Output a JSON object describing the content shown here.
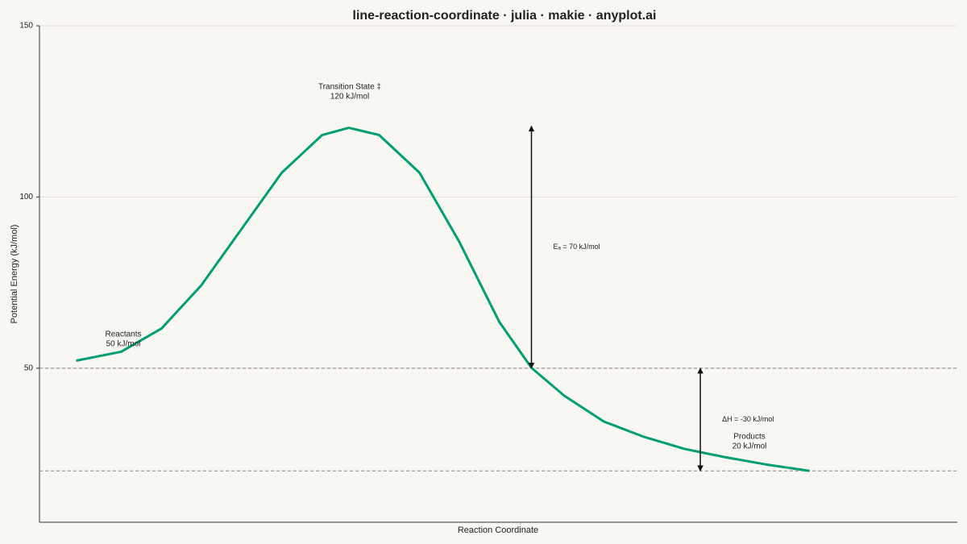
{
  "chart_data": {
    "type": "line",
    "title": "line-reaction-coordinate · julia · makie · anyplot.ai",
    "x_label": "Reaction Coordinate",
    "y_label": "Potential Energy (kJ/mol)",
    "x": [
      4.0,
      8.9,
      13.3,
      17.6,
      22.0,
      26.4,
      30.8,
      33.7,
      37.0,
      41.4,
      45.7,
      50.1,
      53.6,
      57.2,
      61.5,
      65.9,
      70.3,
      74.7,
      79.1,
      83.9
    ],
    "series": [
      {
        "color": "#009e73",
        "values": [
          52.2,
          54.8,
          61.6,
          74.1,
          90.6,
          107.1,
          118.1,
          120.2,
          118.1,
          107.1,
          87.1,
          63.5,
          50.1,
          41.9,
          34.4,
          29.9,
          26.4,
          24.0,
          21.9,
          20.0
        ]
      }
    ],
    "xlim": [
      0,
      100
    ],
    "ylim": [
      5,
      150
    ],
    "yticks": [
      50,
      100,
      150
    ],
    "grid": true,
    "reference_lines": [
      50,
      20
    ],
    "arrows": [
      {
        "x": 53.6,
        "from": 120.7,
        "to": 50,
        "label": "Eₐ = 70 kJ/mol"
      },
      {
        "x": 72.0,
        "from": 50,
        "to": 20,
        "label": "ΔH = -30 kJ/mol"
      }
    ],
    "annotations": [
      {
        "text": [
          "Reactants",
          "50 kJ/mol"
        ]
      },
      {
        "text": [
          "Transition State ‡",
          "120 kJ/mol"
        ]
      },
      {
        "text": [
          "Products",
          "20 kJ/mol"
        ]
      }
    ]
  }
}
